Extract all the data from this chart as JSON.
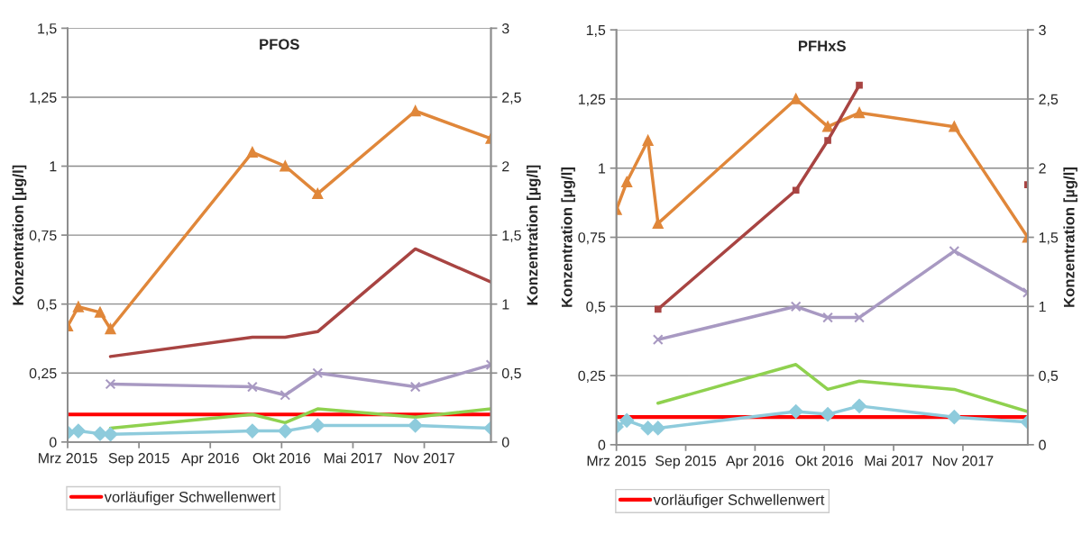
{
  "chart_data": [
    {
      "type": "line",
      "title": "PFOS",
      "ylabel": "Konzentration [µg/l]",
      "y2label": "Konzentration [µg/l]",
      "x": [
        "2015-03-01",
        "2015-03-31",
        "2015-05-31",
        "2015-06-29",
        "2016-07-31",
        "2016-10-31",
        "2017-01-30",
        "2017-10-31",
        "2018-05-31"
      ],
      "series": [
        {
          "color": "#e0873a",
          "marker": "triangle",
          "values": [
            0.42,
            0.49,
            0.47,
            0.41,
            1.05,
            1.0,
            0.9,
            1.2,
            1.1
          ]
        },
        {
          "color": "#a84442",
          "marker": "none",
          "values": [
            null,
            null,
            null,
            0.31,
            0.38,
            0.38,
            0.4,
            0.7,
            0.58
          ]
        },
        {
          "color": "#a899c2",
          "marker": "cross",
          "values": [
            null,
            null,
            null,
            0.21,
            0.2,
            0.17,
            0.25,
            0.2,
            0.28
          ]
        },
        {
          "color": "#8fd14f",
          "marker": "none",
          "values": [
            null,
            null,
            null,
            0.05,
            0.1,
            0.07,
            0.12,
            0.09,
            0.12
          ]
        },
        {
          "color": "#8ecbdc",
          "marker": "diamond",
          "values": [
            0.034,
            0.04,
            0.03,
            0.028,
            0.04,
            0.04,
            0.06,
            0.06,
            0.05
          ]
        }
      ],
      "ref_lines": [
        {
          "axis": "y",
          "value": 0.1,
          "label": "vorläufiger Schwellenwert",
          "color": "#ff0000"
        }
      ],
      "xlim": [
        "2015-03-01",
        "2018-05-31"
      ],
      "xticks": [
        {
          "value": "2015-03-01",
          "label": "Mrz 2015"
        },
        {
          "value": "2015-09-17",
          "label": "Sep 2015"
        },
        {
          "value": "2016-04-04",
          "label": "Apr 2016"
        },
        {
          "value": "2016-10-21",
          "label": "Okt 2016"
        },
        {
          "value": "2017-05-09",
          "label": "Mai 2017"
        },
        {
          "value": "2017-11-25",
          "label": "Nov 2017"
        }
      ],
      "ylim": [
        0,
        1.5
      ],
      "yticks": [
        0,
        {
          "value": 0.25,
          "label": "0,25"
        },
        {
          "value": 0.5,
          "label": "0,5"
        },
        {
          "value": 0.75,
          "label": "0,75"
        },
        1,
        {
          "value": 1.25,
          "label": "1,25"
        },
        {
          "value": 1.5,
          "label": "1,5"
        }
      ],
      "y2lim": [
        0,
        3
      ],
      "y2ticks": [
        0,
        {
          "value": 0.5,
          "label": "0,5"
        },
        1,
        {
          "value": 1.5,
          "label": "1,5"
        },
        2,
        {
          "value": 2.5,
          "label": "2,5"
        },
        3
      ],
      "grid": "y",
      "legend": "bottom"
    },
    {
      "type": "line",
      "title": "PFHxS",
      "ylabel": "Konzentration [µg/l]",
      "y2label": "Konzentration [µg/l]",
      "x": [
        "2015-03-01",
        "2015-03-31",
        "2015-05-31",
        "2015-06-29",
        "2016-07-31",
        "2016-10-31",
        "2017-01-30",
        "2017-10-31",
        "2018-05-31"
      ],
      "series": [
        {
          "color": "#e0873a",
          "marker": "triangle",
          "values": [
            0.85,
            0.95,
            1.1,
            0.8,
            1.25,
            1.15,
            1.2,
            1.15,
            0.75
          ]
        },
        {
          "color": "#a84442",
          "marker": "square",
          "values": [
            null,
            null,
            null,
            0.49,
            0.92,
            1.1,
            1.3,
            null,
            0.94
          ]
        },
        {
          "color": "#a899c2",
          "marker": "cross",
          "values": [
            null,
            null,
            null,
            0.38,
            0.5,
            0.46,
            0.46,
            0.7,
            0.55
          ]
        },
        {
          "color": "#8fd14f",
          "marker": "none",
          "values": [
            null,
            null,
            null,
            0.15,
            0.29,
            0.2,
            0.23,
            0.2,
            0.12
          ]
        },
        {
          "color": "#8ecbdc",
          "marker": "diamond",
          "values": [
            0.065,
            0.088,
            0.06,
            0.06,
            0.12,
            0.11,
            0.14,
            0.1,
            0.082
          ]
        }
      ],
      "ref_lines": [
        {
          "axis": "y",
          "value": 0.1,
          "label": "vorläufiger Schwellenwert",
          "color": "#ff0000"
        }
      ],
      "xlim": [
        "2015-03-01",
        "2018-05-31"
      ],
      "xticks": [
        {
          "value": "2015-03-01",
          "label": "Mrz 2015"
        },
        {
          "value": "2015-09-17",
          "label": "Sep 2015"
        },
        {
          "value": "2016-04-04",
          "label": "Apr 2016"
        },
        {
          "value": "2016-10-21",
          "label": "Okt 2016"
        },
        {
          "value": "2017-05-09",
          "label": "Mai 2017"
        },
        {
          "value": "2017-11-25",
          "label": "Nov 2017"
        }
      ],
      "ylim": [
        0,
        1.5
      ],
      "yticks": [
        0,
        {
          "value": 0.25,
          "label": "0,25"
        },
        {
          "value": 0.5,
          "label": "0,5"
        },
        {
          "value": 0.75,
          "label": "0,75"
        },
        1,
        {
          "value": 1.25,
          "label": "1,25"
        },
        {
          "value": 1.5,
          "label": "1,5"
        }
      ],
      "y2lim": [
        0,
        3
      ],
      "y2ticks": [
        0,
        {
          "value": 0.5,
          "label": "0,5"
        },
        1,
        {
          "value": 1.5,
          "label": "1,5"
        },
        2,
        {
          "value": 2.5,
          "label": "2,5"
        },
        3
      ],
      "grid": "y",
      "legend": "bottom"
    }
  ]
}
